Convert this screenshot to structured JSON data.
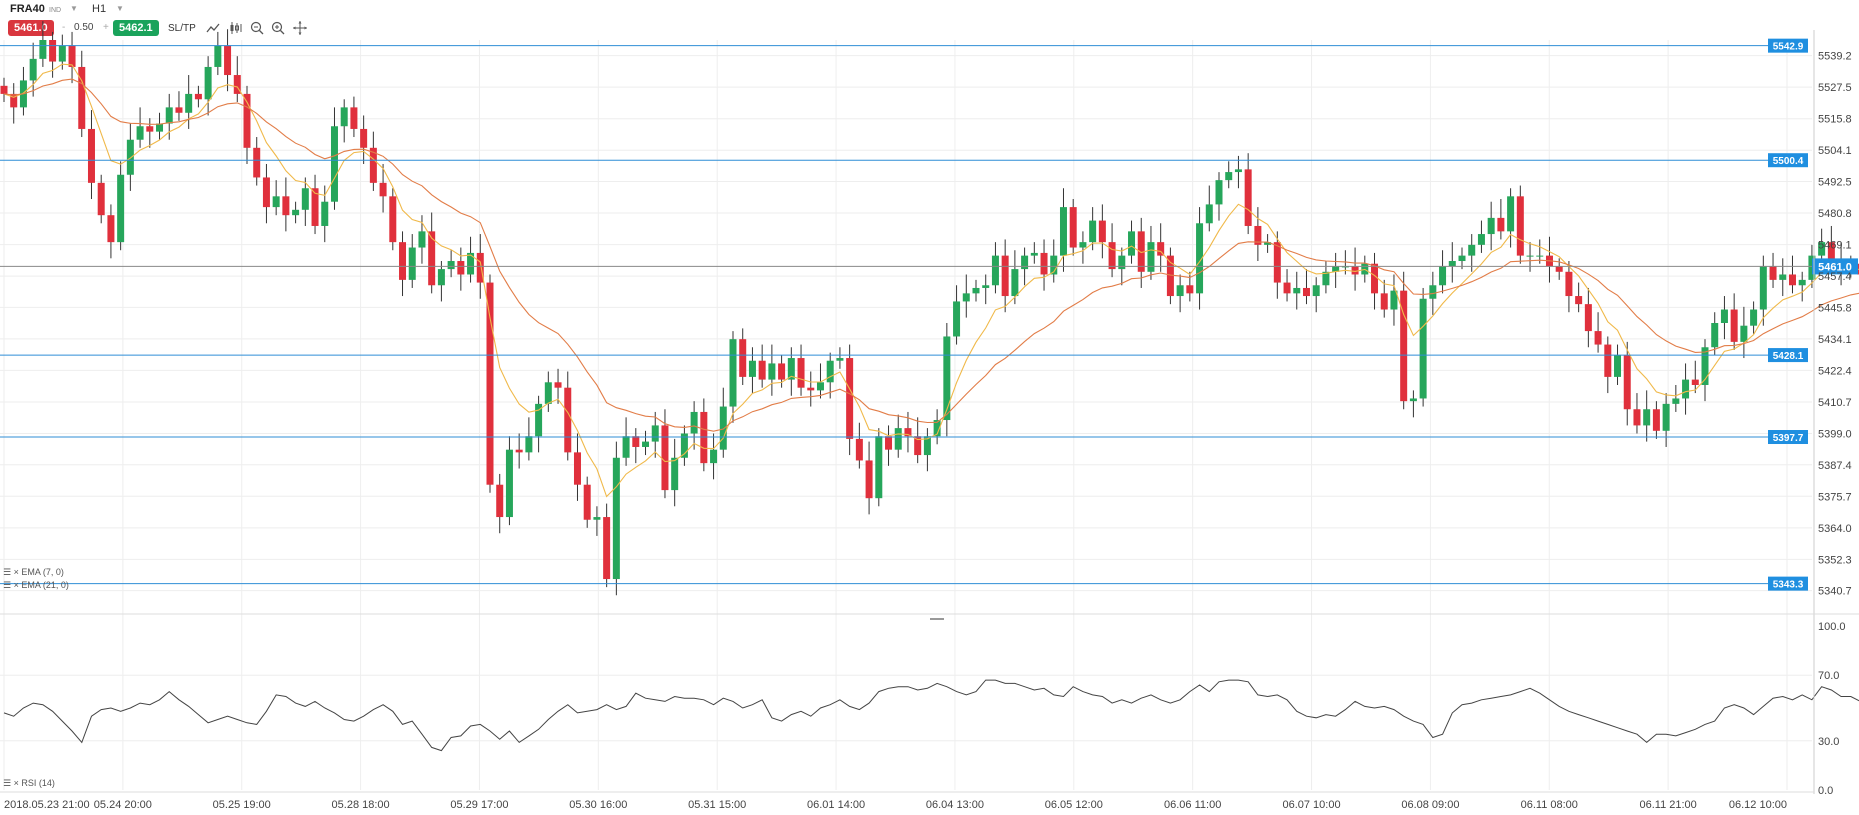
{
  "toolbar": {
    "symbol": "FRA40",
    "exchange": "IND",
    "timeframe": "H1",
    "sell_price": "5461.0",
    "buy_price": "5462.1",
    "lot_minus": "-",
    "lot_size": "0.50",
    "lot_plus": "+",
    "sltp_label": "SL/TP",
    "tools": [
      "line-chart-icon",
      "candles-icon",
      "zoom-out-icon",
      "zoom-in-icon",
      "crosshair-icon"
    ]
  },
  "colors": {
    "bull": "#26a65b",
    "bear": "#e0303c",
    "ema7": "#f0b94a",
    "ema21": "#e27d48",
    "level_line": "#2f8ed6",
    "level_label_bg": "#1f8fe0",
    "current_line": "#888888",
    "current_label_bg": "#1f8fe0",
    "rsi_line": "#444444",
    "grid": "#eeeeee"
  },
  "indicators": {
    "ema7_label": "EMA (7, 0)",
    "ema21_label": "EMA (21, 0)",
    "rsi_label": "RSI (14)"
  },
  "chart_data": [
    {
      "type": "candlestick",
      "title": "",
      "ylim": [
        5335,
        5545
      ],
      "y_ticks": [
        "5539.2",
        "5527.5",
        "5515.8",
        "5504.1",
        "5492.5",
        "5480.8",
        "5469.1",
        "5457.4",
        "5445.8",
        "5434.1",
        "5422.4",
        "5410.7",
        "5399.0",
        "5387.4",
        "5375.7",
        "5364.0",
        "5352.3",
        "5340.7"
      ],
      "x_ticks": [
        "2018.05.23 21:00",
        "05.24 20:00",
        "05.25 19:00",
        "05.28 18:00",
        "05.29 17:00",
        "05.30 16:00",
        "05.31 15:00",
        "06.01 14:00",
        "06.04 13:00",
        "06.05 12:00",
        "06.06 11:00",
        "06.07 10:00",
        "06.08 09:00",
        "06.11 08:00",
        "06.11 21:00",
        "06.12 10:00"
      ],
      "horizontal_levels": [
        "5542.9",
        "5500.4",
        "5428.1",
        "5397.7",
        "5343.3"
      ],
      "current_price": "5461.0",
      "closes": [
        5525,
        5520,
        5530,
        5538,
        5545,
        5537,
        5543,
        5535,
        5512,
        5492,
        5480,
        5470,
        5495,
        5508,
        5513,
        5511,
        5514,
        5520,
        5518,
        5525,
        5523,
        5535,
        5543,
        5532,
        5525,
        5505,
        5494,
        5483,
        5487,
        5480,
        5482,
        5490,
        5476,
        5485,
        5513,
        5520,
        5512,
        5505,
        5492,
        5487,
        5470,
        5456,
        5468,
        5474,
        5454,
        5460,
        5463,
        5458,
        5466,
        5455,
        5380,
        5368,
        5393,
        5392,
        5398,
        5410,
        5418,
        5416,
        5392,
        5380,
        5367,
        5368,
        5345,
        5390,
        5398,
        5394,
        5396,
        5402,
        5378,
        5390,
        5399,
        5407,
        5388,
        5393,
        5409,
        5434,
        5420,
        5426,
        5419,
        5425,
        5419,
        5427,
        5416,
        5415,
        5418,
        5426,
        5427,
        5397,
        5389,
        5375,
        5398,
        5393,
        5401,
        5398,
        5391,
        5398,
        5404,
        5435,
        5448,
        5451,
        5453,
        5454,
        5465,
        5450,
        5460,
        5465,
        5466,
        5458,
        5465,
        5483,
        5468,
        5470,
        5478,
        5470,
        5460,
        5465,
        5474,
        5459,
        5470,
        5465,
        5450,
        5454,
        5451,
        5477,
        5484,
        5493,
        5496,
        5497,
        5476,
        5469,
        5470,
        5455,
        5451,
        5453,
        5450,
        5454,
        5459,
        5461,
        5461,
        5458,
        5462,
        5451,
        5445,
        5452,
        5411,
        5412,
        5449,
        5454,
        5461,
        5463,
        5465,
        5469,
        5473,
        5479,
        5474,
        5487,
        5465,
        5465,
        5465,
        5461,
        5459,
        5450,
        5447,
        5437,
        5432,
        5420,
        5428,
        5408,
        5402,
        5408,
        5400,
        5410,
        5412,
        5419,
        5417,
        5431,
        5440,
        5445,
        5433,
        5439,
        5445,
        5461,
        5456,
        5458,
        5454,
        5456,
        5465,
        5470,
        5463,
        5460,
        5462,
        5458,
        5458,
        5461
      ],
      "ema7_label": "EMA (7, 0)",
      "ema21_label": "EMA (21, 0)"
    },
    {
      "type": "line",
      "title": "RSI (14)",
      "ylim": [
        0,
        100
      ],
      "y_ticks": [
        "100.0",
        "70.0",
        "30.0",
        "0.0"
      ],
      "values": [
        47,
        45,
        50,
        53,
        52,
        48,
        42,
        36,
        29,
        45,
        49,
        50,
        48,
        50,
        53,
        52,
        55,
        60,
        55,
        51,
        46,
        41,
        43,
        45,
        43,
        41,
        40,
        48,
        58,
        57,
        53,
        51,
        54,
        50,
        47,
        43,
        42,
        45,
        49,
        52,
        48,
        40,
        42,
        34,
        26,
        24,
        32,
        33,
        39,
        40,
        36,
        31,
        36,
        29,
        33,
        37,
        43,
        48,
        52,
        47,
        48,
        49,
        52,
        49,
        51,
        59,
        56,
        55,
        54,
        57,
        56,
        56,
        55,
        52,
        56,
        54,
        50,
        52,
        55,
        44,
        42,
        46,
        48,
        45,
        50,
        52,
        55,
        51,
        49,
        53,
        60,
        62,
        63,
        63,
        61,
        62,
        65,
        63,
        60,
        58,
        60,
        67,
        67,
        65,
        65,
        63,
        61,
        62,
        58,
        57,
        63,
        60,
        58,
        57,
        53,
        55,
        53,
        56,
        58,
        55,
        53,
        55,
        60,
        64,
        60,
        66,
        67,
        67,
        66,
        58,
        57,
        58,
        55,
        48,
        45,
        44,
        46,
        45,
        49,
        54,
        51,
        50,
        51,
        49,
        45,
        42,
        40,
        32,
        34,
        47,
        52,
        53,
        55,
        56,
        57,
        58,
        60,
        62,
        59,
        55,
        51,
        48,
        46,
        44,
        42,
        40,
        38,
        36,
        34,
        29,
        34,
        34,
        33,
        35,
        37,
        40,
        42,
        50,
        52,
        50,
        46,
        51,
        56,
        57,
        55,
        58,
        55,
        63,
        61,
        57,
        57,
        54,
        53,
        55,
        56
      ]
    }
  ]
}
